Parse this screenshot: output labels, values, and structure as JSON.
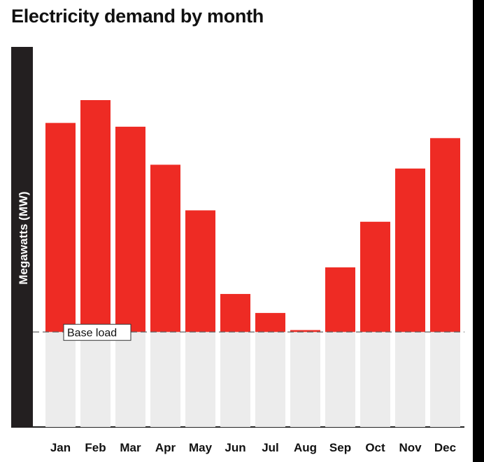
{
  "chart_data": {
    "type": "bar",
    "title": "Electricity demand by month",
    "ylabel": "Megawatts (MW)",
    "xlabel": "",
    "categories": [
      "Jan",
      "Feb",
      "Mar",
      "Apr",
      "May",
      "Jun",
      "Jul",
      "Aug",
      "Sep",
      "Oct",
      "Nov",
      "Dec"
    ],
    "values": [
      80,
      86,
      79,
      69,
      57,
      35,
      30,
      25.5,
      42,
      54,
      68,
      76
    ],
    "ylim": [
      0,
      100
    ],
    "baseline": {
      "label": "Base load",
      "value": 25
    },
    "grid": false,
    "legend": "none",
    "colors": {
      "bar": "#ee2b24",
      "below_base": "#ececec",
      "axis_band": "#231f20",
      "baseline": "#666666"
    }
  }
}
